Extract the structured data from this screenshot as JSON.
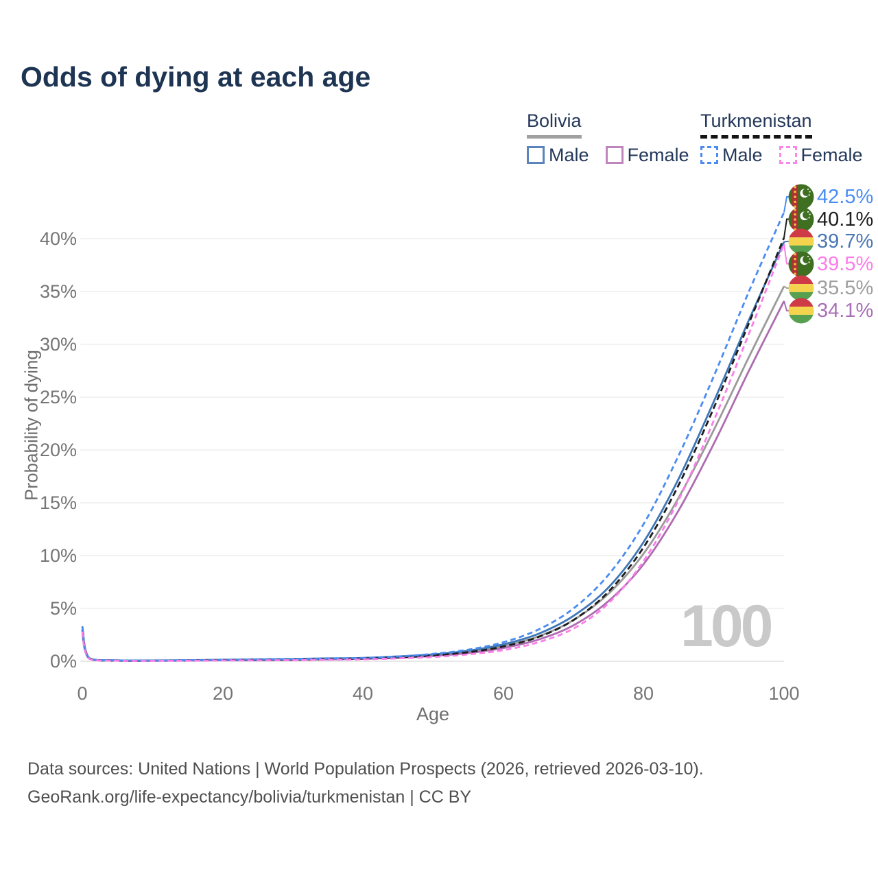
{
  "watermark": "100",
  "legend": {
    "groups": [
      {
        "country": "Bolivia",
        "line_style": "solid",
        "line_color": "#a0a0a0",
        "items": [
          {
            "label": "Male",
            "color": "#5b84bc",
            "dashed": false
          },
          {
            "label": "Female",
            "color": "#bf86bd",
            "dashed": false
          }
        ]
      },
      {
        "country": "Turkmenistan",
        "line_style": "dashed",
        "line_color": "#141414",
        "items": [
          {
            "label": "Male",
            "color": "#4a8cf2",
            "dashed": true
          },
          {
            "label": "Female",
            "color": "#fd86e9",
            "dashed": true
          }
        ]
      }
    ]
  },
  "end_labels": [
    {
      "flag": "turkmenistan",
      "series": "Turkmenistan Male",
      "value": "42.5%",
      "color": "#4a8cf2"
    },
    {
      "flag": "turkmenistan",
      "series": "Turkmenistan Both sexes",
      "value": "40.1%",
      "color": "#1d1d1d"
    },
    {
      "flag": "bolivia",
      "series": "Bolivia Male",
      "value": "39.7%",
      "color": "#4a77b4"
    },
    {
      "flag": "turkmenistan",
      "series": "Turkmenistan Female",
      "value": "39.5%",
      "color": "#fb7de9"
    },
    {
      "flag": "bolivia",
      "series": "Bolivia Both sexes",
      "value": "35.5%",
      "color": "#9e9e9e"
    },
    {
      "flag": "bolivia",
      "series": "Bolivia Female",
      "value": "34.1%",
      "color": "#a76fb5"
    }
  ],
  "footer": {
    "line1": "Data sources: United Nations | World Population Prospects (2026, retrieved 2026-03-10).",
    "line2": "GeoRank.org/life-expectancy/bolivia/turkmenistan | CC BY"
  },
  "chart_data": {
    "type": "line",
    "title": "Odds of dying at each age",
    "xlabel": "Age",
    "ylabel": "Probability of dying",
    "xlim": [
      0,
      100
    ],
    "ylim": [
      0,
      44
    ],
    "x_ticks": [
      0,
      20,
      40,
      60,
      80,
      100
    ],
    "y_ticks": [
      0,
      5,
      10,
      15,
      20,
      25,
      30,
      35,
      40
    ],
    "grid": "horizontal",
    "unit": "%",
    "x": [
      0,
      1,
      5,
      10,
      15,
      20,
      25,
      30,
      35,
      40,
      45,
      50,
      55,
      60,
      65,
      70,
      75,
      80,
      85,
      90,
      95,
      100
    ],
    "series": [
      {
        "name": "Bolivia Both sexes",
        "country": "Bolivia",
        "sex": "both",
        "color": "#9a9a9a",
        "dashed": false,
        "values": [
          2.9,
          0.27,
          0.07,
          0.06,
          0.09,
          0.12,
          0.15,
          0.18,
          0.23,
          0.28,
          0.41,
          0.58,
          0.9,
          1.45,
          2.35,
          3.9,
          6.4,
          10.2,
          15.5,
          21.9,
          28.8,
          35.5
        ]
      },
      {
        "name": "Bolivia Female",
        "country": "Bolivia",
        "sex": "female",
        "color": "#ad6cb0",
        "dashed": false,
        "values": [
          2.6,
          0.24,
          0.06,
          0.05,
          0.07,
          0.09,
          0.11,
          0.14,
          0.18,
          0.23,
          0.34,
          0.5,
          0.78,
          1.25,
          2.05,
          3.4,
          5.7,
          9.2,
          14.3,
          20.6,
          27.5,
          34.1
        ]
      },
      {
        "name": "Bolivia Male",
        "country": "Bolivia",
        "sex": "male",
        "color": "#3e76b6",
        "dashed": false,
        "values": [
          3.3,
          0.3,
          0.09,
          0.07,
          0.1,
          0.14,
          0.18,
          0.22,
          0.27,
          0.32,
          0.46,
          0.65,
          1.0,
          1.6,
          2.6,
          4.3,
          7.0,
          11.3,
          17.3,
          24.6,
          32.3,
          39.7
        ]
      },
      {
        "name": "Turkmenistan Both sexes",
        "country": "Turkmenistan",
        "sex": "both",
        "color": "#1d1d1d",
        "dashed": true,
        "values": [
          3.0,
          0.25,
          0.06,
          0.05,
          0.07,
          0.1,
          0.12,
          0.15,
          0.2,
          0.25,
          0.37,
          0.55,
          0.85,
          1.4,
          2.3,
          3.9,
          6.6,
          10.8,
          16.7,
          24.0,
          32.0,
          40.1
        ]
      },
      {
        "name": "Turkmenistan Male",
        "country": "Turkmenistan",
        "sex": "male",
        "color": "#4a8cf2",
        "dashed": true,
        "values": [
          3.2,
          0.3,
          0.08,
          0.06,
          0.09,
          0.12,
          0.16,
          0.2,
          0.25,
          0.3,
          0.45,
          0.7,
          1.1,
          1.8,
          3.0,
          5.0,
          8.2,
          13.0,
          19.5,
          27.0,
          35.0,
          42.5
        ]
      },
      {
        "name": "Turkmenistan Female",
        "country": "Turkmenistan",
        "sex": "female",
        "color": "#fb7de9",
        "dashed": true,
        "values": [
          2.8,
          0.22,
          0.05,
          0.04,
          0.05,
          0.07,
          0.08,
          0.1,
          0.14,
          0.18,
          0.27,
          0.4,
          0.65,
          1.05,
          1.8,
          3.1,
          5.5,
          9.5,
          15.3,
          22.8,
          31.0,
          39.5
        ]
      }
    ]
  }
}
